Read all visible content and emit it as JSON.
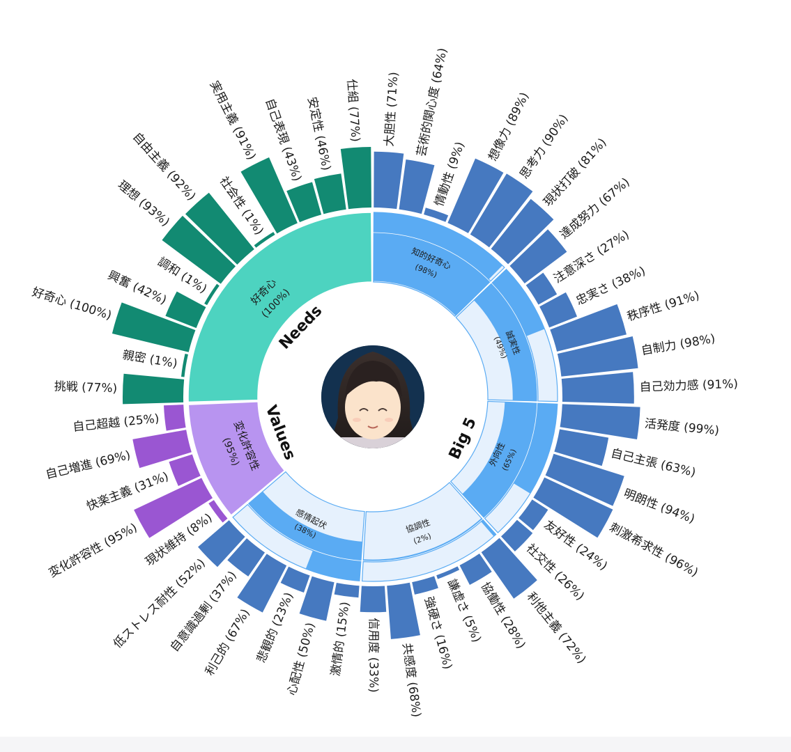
{
  "chart_data": {
    "type": "sunburst",
    "colors": {
      "needs_inner": "#4dd3c0",
      "needs_outer": "#128a72",
      "values_inner": "#b894f0",
      "values_outer": "#9a56d2",
      "big5_inner_fill": "#5aabf3",
      "big5_inner_bg": "#e6f1fd",
      "big5_outer": "#4679c0",
      "big5_stroke": "#5aabf3"
    },
    "categories": [
      {
        "label": "Needs",
        "key": "needs"
      },
      {
        "label": "Values",
        "key": "values"
      },
      {
        "label": "Big 5",
        "key": "big5"
      }
    ],
    "groups": [
      {
        "name": "好奇心",
        "pct": "(100%)",
        "value": 100,
        "family": "needs",
        "items": [
          {
            "label": "挑戦 (77%)",
            "value": 77
          },
          {
            "label": "親密 (1%)",
            "value": 1
          },
          {
            "label": "好奇心 (100%)",
            "value": 100
          },
          {
            "label": "興奮 (42%)",
            "value": 42
          },
          {
            "label": "調和 (1%)",
            "value": 1
          },
          {
            "label": "理想 (93%)",
            "value": 93
          },
          {
            "label": "自由主義 (92%)",
            "value": 92
          },
          {
            "label": "社会性 (1%)",
            "value": 1
          },
          {
            "label": "実用主義 (91%)",
            "value": 91
          },
          {
            "label": "自己表現 (43%)",
            "value": 43
          },
          {
            "label": "安定性 (46%)",
            "value": 46
          },
          {
            "label": "仕組 (77%)",
            "value": 77
          }
        ]
      },
      {
        "name": "知的好奇心",
        "pct": "(98%)",
        "value": 98,
        "family": "big5",
        "items": [
          {
            "label": "大胆性 (71%)",
            "value": 71
          },
          {
            "label": "芸術的関心度 (64%)",
            "value": 64
          },
          {
            "label": "情動性 (9%)",
            "value": 9
          },
          {
            "label": "想像力 (89%)",
            "value": 89
          },
          {
            "label": "思考力 (90%)",
            "value": 90
          },
          {
            "label": "現状打破 (81%)",
            "value": 81
          }
        ]
      },
      {
        "name": "誠実性",
        "pct": "(49%)",
        "value": 49,
        "family": "big5",
        "items": [
          {
            "label": "達成努力 (67%)",
            "value": 67
          },
          {
            "label": "注意深さ (27%)",
            "value": 27
          },
          {
            "label": "忠実さ (38%)",
            "value": 38
          },
          {
            "label": "秩序性 (91%)",
            "value": 91
          },
          {
            "label": "自制力 (98%)",
            "value": 98
          },
          {
            "label": "自己効力感 (91%)",
            "value": 91
          }
        ]
      },
      {
        "name": "外向性",
        "pct": "(65%)",
        "value": 65,
        "family": "big5",
        "items": [
          {
            "label": "活発度 (99%)",
            "value": 99
          },
          {
            "label": "自己主張 (63%)",
            "value": 63
          },
          {
            "label": "明朗性 (94%)",
            "value": 94
          },
          {
            "label": "刺激希求性 (96%)",
            "value": 96
          },
          {
            "label": "友好性 (24%)",
            "value": 24
          },
          {
            "label": "社交性 (26%)",
            "value": 26
          }
        ]
      },
      {
        "name": "協調性",
        "pct": "(2%)",
        "value": 2,
        "family": "big5",
        "items": [
          {
            "label": "利他主義 (72%)",
            "value": 72
          },
          {
            "label": "協働性 (28%)",
            "value": 28
          },
          {
            "label": "謙虚さ (5%)",
            "value": 5
          },
          {
            "label": "強硬さ (16%)",
            "value": 16
          },
          {
            "label": "共感度 (68%)",
            "value": 68
          },
          {
            "label": "信用度 (33%)",
            "value": 33
          }
        ]
      },
      {
        "name": "感情起伏",
        "pct": "(38%)",
        "value": 38,
        "family": "big5",
        "items": [
          {
            "label": "激情的 (15%)",
            "value": 15
          },
          {
            "label": "心配性 (50%)",
            "value": 50
          },
          {
            "label": "悲観的 (23%)",
            "value": 23
          },
          {
            "label": "利己的 (67%)",
            "value": 67
          },
          {
            "label": "自意識過剰 (37%)",
            "value": 37
          },
          {
            "label": "低ストレス耐性 (52%)",
            "value": 52
          }
        ]
      },
      {
        "name": "変化許容性",
        "pct": "(95%)",
        "value": 95,
        "family": "values",
        "items": [
          {
            "label": "現状維持 (8%)",
            "value": 8
          },
          {
            "label": "変化許容性 (95%)",
            "value": 95
          },
          {
            "label": "快楽主義 (31%)",
            "value": 31
          },
          {
            "label": "自己増進 (69%)",
            "value": 69
          },
          {
            "label": "自己超越 (25%)",
            "value": 25
          }
        ]
      }
    ]
  },
  "avatar": {
    "icon": "avatar-portrait"
  }
}
